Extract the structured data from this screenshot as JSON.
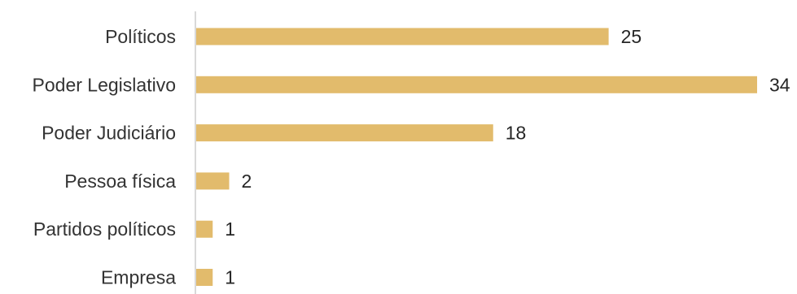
{
  "chart_data": {
    "type": "bar",
    "orientation": "horizontal",
    "title": "",
    "categories": [
      "Políticos",
      "Poder Legislativo",
      "Poder Judiciário",
      "Pessoa física",
      "Partidos políticos",
      "Empresa"
    ],
    "values": [
      25,
      34,
      18,
      2,
      1,
      1
    ],
    "data_labels": [
      "25",
      "34",
      "18",
      "2",
      "1",
      "1"
    ],
    "xlim": [
      0,
      34
    ],
    "grid": false,
    "legend": "none",
    "bar_color": "#E2BB6C",
    "axis_color": "#D9D9D9"
  }
}
